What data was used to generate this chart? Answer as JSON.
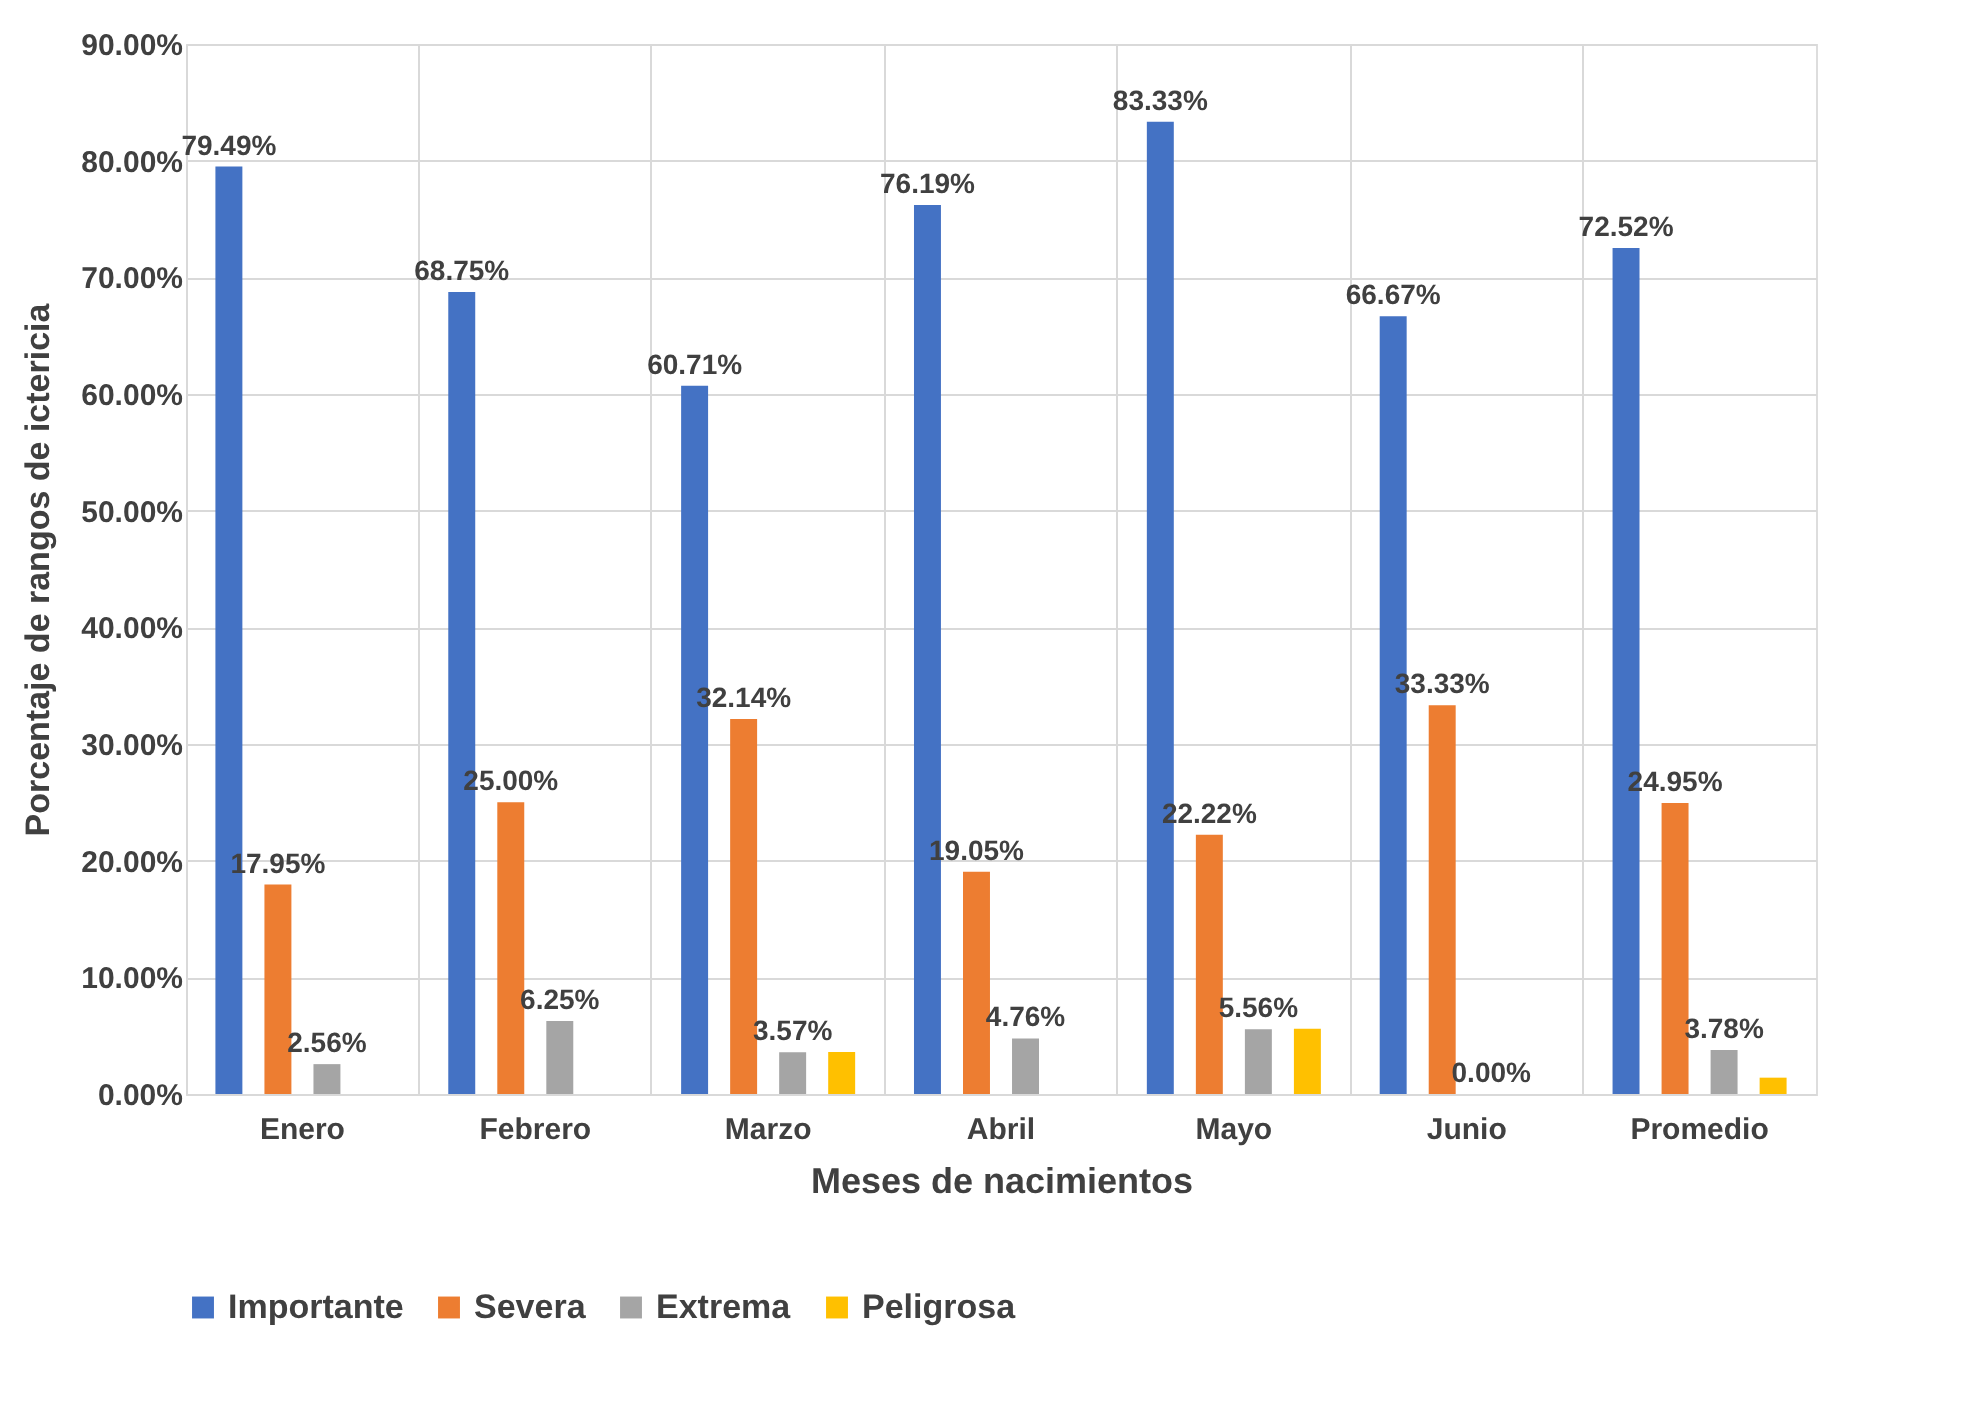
{
  "chart_data": {
    "type": "bar",
    "xlabel": "Meses de nacimientos",
    "ylabel": "Porcentaje de  rangos de ictericia",
    "categories": [
      "Enero",
      "Febrero",
      "Marzo",
      "Abril",
      "Mayo",
      "Junio",
      "Promedio"
    ],
    "series": [
      {
        "name": "Importante",
        "color": "#4472c4",
        "values": [
          79.49,
          68.75,
          60.71,
          76.19,
          83.33,
          66.67,
          72.52
        ],
        "value_labels": [
          "79.49%",
          "68.75%",
          "60.71%",
          "76.19%",
          "83.33%",
          "66.67%",
          "72.52%"
        ]
      },
      {
        "name": "Severa",
        "color": "#ed7d31",
        "values": [
          17.95,
          25.0,
          32.14,
          19.05,
          22.22,
          33.33,
          24.95
        ],
        "value_labels": [
          "17.95%",
          "25.00%",
          "32.14%",
          "19.05%",
          "22.22%",
          "33.33%",
          "24.95%"
        ]
      },
      {
        "name": "Extrema",
        "color": "#a5a5a5",
        "values": [
          2.56,
          6.25,
          3.57,
          4.76,
          5.56,
          0.0,
          3.78
        ],
        "value_labels": [
          "2.56%",
          "6.25%",
          "3.57%",
          "4.76%",
          "5.56%",
          "0.00%",
          "3.78%"
        ]
      },
      {
        "name": "Peligrosa",
        "color": "#ffc000",
        "values": [
          0,
          0,
          3.6,
          0,
          5.6,
          0,
          1.4
        ],
        "value_labels": [
          null,
          null,
          null,
          null,
          null,
          null,
          null
        ]
      }
    ],
    "ylim": [
      0,
      90
    ],
    "yticks": [
      {
        "value": 0,
        "label": "0.00%"
      },
      {
        "value": 10,
        "label": "10.00%"
      },
      {
        "value": 20,
        "label": "20.00%"
      },
      {
        "value": 30,
        "label": "30.00%"
      },
      {
        "value": 40,
        "label": "40.00%"
      },
      {
        "value": 50,
        "label": "50.00%"
      },
      {
        "value": 60,
        "label": "60.00%"
      },
      {
        "value": 70,
        "label": "70.00%"
      },
      {
        "value": 80,
        "label": "80.00%"
      },
      {
        "value": 90,
        "label": "90.00%"
      }
    ],
    "grid": true,
    "legend": "bottom"
  }
}
